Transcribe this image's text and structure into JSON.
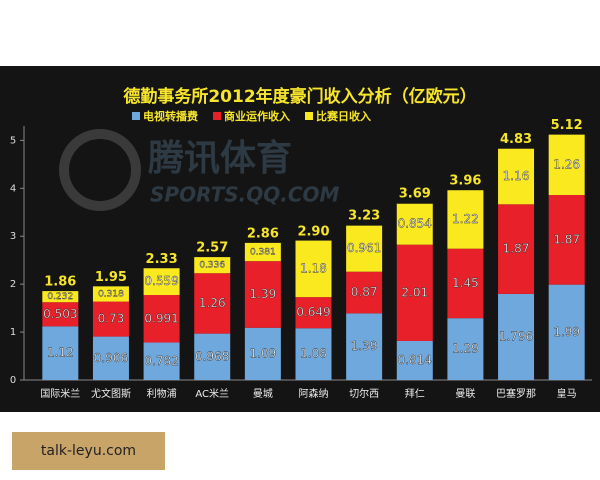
{
  "chart_data": {
    "type": "stacked_bar",
    "title": "德勤事务所2012年度豪门收入分析（亿欧元）",
    "categories": [
      "国际米兰",
      "尤文图斯",
      "利物浦",
      "AC米兰",
      "曼城",
      "阿森纳",
      "切尔西",
      "拜仁",
      "曼联",
      "巴塞罗那",
      "皇马"
    ],
    "series": [
      {
        "name": "电视转播费",
        "color": "#6fa8dc",
        "values": [
          1.12,
          0.906,
          0.782,
          0.968,
          1.09,
          1.08,
          1.39,
          0.814,
          1.29,
          1.796,
          1.99
        ]
      },
      {
        "name": "商业运作收入",
        "color": "#e8202a",
        "values": [
          0.503,
          0.73,
          0.991,
          1.26,
          1.39,
          0.649,
          0.87,
          2.01,
          1.45,
          1.87,
          1.87
        ]
      },
      {
        "name": "比赛日收入",
        "color": "#fbe920",
        "values": [
          0.232,
          0.318,
          0.559,
          0.336,
          0.381,
          1.18,
          0.961,
          0.854,
          1.22,
          1.16,
          1.26
        ]
      }
    ],
    "totals": {
      "values": [
        1.86,
        1.95,
        2.33,
        2.57,
        2.86,
        2.9,
        3.23,
        3.69,
        3.96,
        4.83,
        5.12
      ],
      "value_labels": [
        "1.86",
        "1.95",
        "2.33",
        "2.57",
        "2.86",
        "2.90",
        "3.23",
        "3.69",
        "3.96",
        "4.83",
        "5.12"
      ]
    },
    "ylim": [
      0,
      5.3
    ],
    "yticks": [
      0,
      1,
      2,
      3,
      4,
      5
    ],
    "watermark": [
      "腾讯体育",
      "SPORTS.QQ.COM"
    ]
  },
  "footer": "talk-leyu.com"
}
